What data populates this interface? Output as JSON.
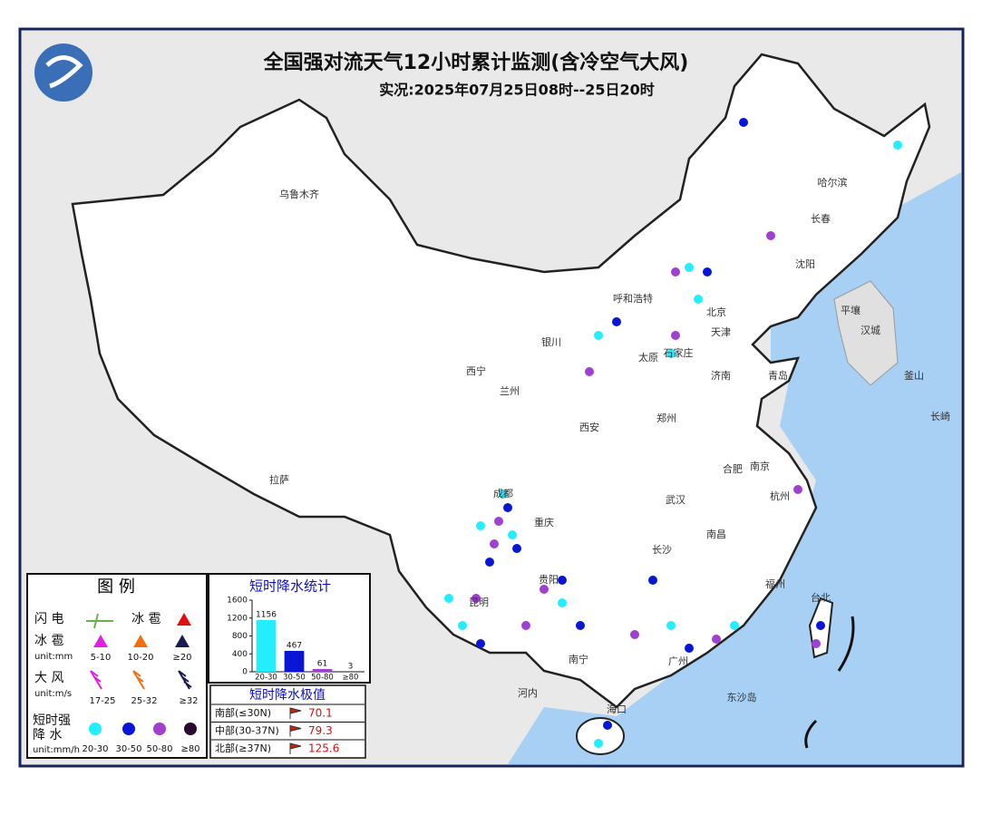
{
  "header": {
    "title": "全国强对流天气12小时累计监测(含冷空气大风)",
    "subtitle": "实况:2025年07月25日08时--25日20时"
  },
  "cities": [
    "乌鲁木齐",
    "哈尔滨",
    "长春",
    "沈阳",
    "呼和浩特",
    "北京",
    "天津",
    "石家庄",
    "太原",
    "济南",
    "青岛",
    "郑州",
    "西安",
    "银川",
    "西宁",
    "兰州",
    "合肥",
    "南京",
    "武汉",
    "成都",
    "重庆",
    "长沙",
    "南昌",
    "杭州",
    "福州",
    "贵阳",
    "昆明",
    "南宁",
    "广州",
    "海口",
    "台北",
    "拉萨",
    "平壤",
    "汉城",
    "釜山",
    "长崎",
    "河内",
    "东沙岛"
  ],
  "legend": {
    "title": "图 例",
    "lightning": "闪 电",
    "hail_top": "冰 雹",
    "hail": "冰 雹",
    "hail_unit": "unit:mm",
    "hail_levels": [
      "5-10",
      "10-20",
      "≥20"
    ],
    "wind": "大 风",
    "wind_unit": "unit:m/s",
    "wind_levels": [
      "17-25",
      "25-32",
      "≥32"
    ],
    "rain_1": "短时强",
    "rain_2": "降 水",
    "rain_unit": "unit:mm/h",
    "rain_levels": [
      "20-30",
      "30-50",
      "50-80",
      "≥80"
    ]
  },
  "chart_data": {
    "type": "bar",
    "title": "短时降水统计",
    "categories": [
      "20-30",
      "30-50",
      "50-80",
      "≥80"
    ],
    "values": [
      1156,
      467,
      61,
      3
    ],
    "colors": [
      "#22eeff",
      "#0a16d6",
      "#a040d0",
      "#2a0830"
    ],
    "ylim": [
      0,
      1600
    ],
    "yticks": [
      0,
      400,
      800,
      1200,
      1600
    ]
  },
  "extremes": {
    "title": "短时降水极值",
    "rows": [
      {
        "region": "南部(≤30N)",
        "value": 70.1
      },
      {
        "region": "中部(30-37N)",
        "value": 79.3
      },
      {
        "region": "北部(≥37N)",
        "value": 125.6
      }
    ]
  }
}
